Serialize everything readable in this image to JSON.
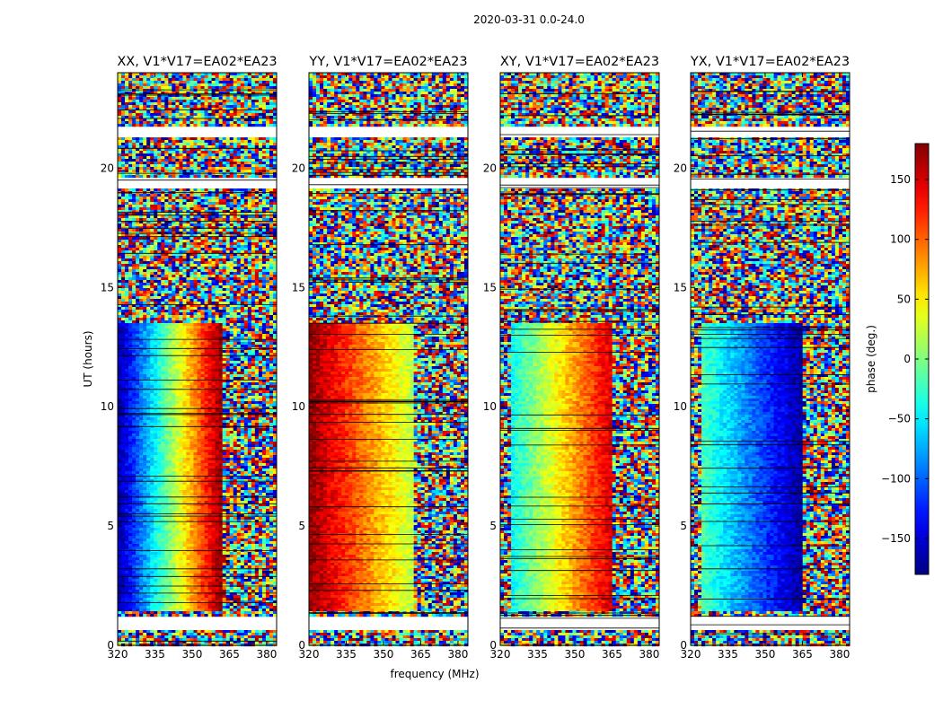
{
  "figure_title": "2020-03-31 0.0-24.0",
  "colors": {
    "axis": "#000000",
    "flagged": "#ffffff",
    "row_separator": "#000000"
  },
  "chart_data": [
    {
      "type": "heatmap",
      "title": "XX, V1*V17=EA02*EA23",
      "xlabel": "",
      "ylabel": "UT (hours)",
      "xlim": [
        320,
        384
      ],
      "ylim": [
        0,
        24
      ],
      "x_ticks": [
        320,
        335,
        350,
        365,
        380
      ],
      "y_ticks": [
        0,
        5,
        10,
        15,
        20
      ],
      "phase_profile": {
        "signal_band": [
          320,
          362
        ],
        "phase_at_low_edge": -170,
        "phase_at_band_edge": 175,
        "signal_hours": [
          1.5,
          13.6
        ]
      }
    },
    {
      "type": "heatmap",
      "title": "YY, V1*V17=EA02*EA23",
      "xlabel": "frequency (MHz)",
      "ylabel": "",
      "xlim": [
        320,
        384
      ],
      "ylim": [
        0,
        24
      ],
      "x_ticks": [
        320,
        335,
        350,
        365,
        380
      ],
      "y_ticks": [
        0,
        5,
        10,
        15,
        20
      ],
      "phase_profile": {
        "signal_band": [
          320,
          362
        ],
        "phase_at_low_edge": 175,
        "phase_at_band_edge": 20,
        "signal_hours": [
          1.5,
          13.6
        ]
      }
    },
    {
      "type": "heatmap",
      "title": "XY, V1*V17=EA02*EA23",
      "xlabel": "",
      "ylabel": "",
      "xlim": [
        320,
        384
      ],
      "ylim": [
        0,
        24
      ],
      "x_ticks": [
        320,
        335,
        350,
        365,
        380
      ],
      "y_ticks": [
        0,
        5,
        10,
        15,
        20
      ],
      "phase_profile": {
        "signal_band": [
          325,
          365
        ],
        "phase_at_low_edge": -40,
        "phase_at_band_edge": 150,
        "signal_hours": [
          1.5,
          13.6
        ]
      }
    },
    {
      "type": "heatmap",
      "title": "YX, V1*V17=EA02*EA23",
      "xlabel": "",
      "ylabel": "",
      "xlim": [
        320,
        384
      ],
      "ylim": [
        0,
        24
      ],
      "x_ticks": [
        320,
        335,
        350,
        365,
        380
      ],
      "y_ticks": [
        0,
        5,
        10,
        15,
        20
      ],
      "phase_profile": {
        "signal_band": [
          325,
          365
        ],
        "phase_at_low_edge": -20,
        "phase_at_band_edge": -170,
        "signal_hours": [
          1.5,
          13.6
        ]
      }
    }
  ],
  "colorbar": {
    "label": "phase (deg.)",
    "range": [
      -180,
      180
    ],
    "ticks": [
      -150,
      -100,
      -50,
      0,
      50,
      100,
      150
    ],
    "tick_labels": [
      "−150",
      "−100",
      "−50",
      "0",
      "50",
      "100",
      "150"
    ],
    "colormap": "jet"
  },
  "flagged_hours": [
    [
      0.7,
      1.3
    ],
    [
      19.2,
      19.6
    ],
    [
      21.4,
      21.8
    ]
  ]
}
